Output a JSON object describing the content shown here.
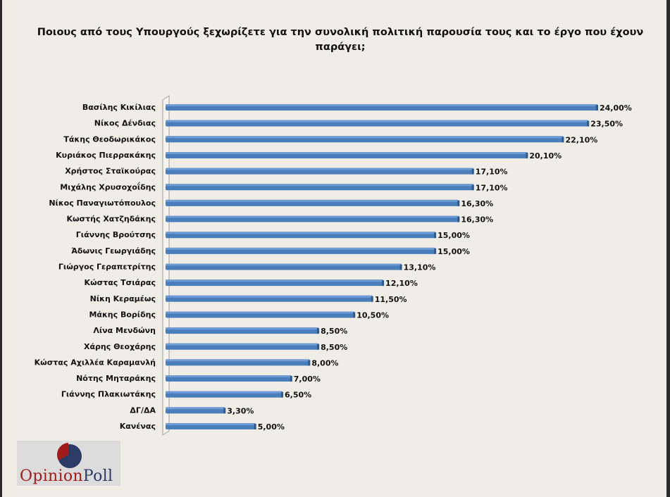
{
  "chart_data": {
    "type": "bar",
    "orientation": "horizontal",
    "title": "Ποιους από τους Υπουργούς  ξεχωρίζετε για την συνολική πολιτική παρουσία τους και το έργο που έχουν παράγει;",
    "categories": [
      "Βασίλης Κικίλιας",
      "Νίκος Δένδιας",
      "Τάκης Θεοδωρικάκος",
      "Κυριάκος Πιερρακάκης",
      "Χρήστος Σταϊκούρας",
      "Μιχάλης Χρυσοχοΐδης",
      "Νίκος Παναγιωτόπουλος",
      "Κωστής Χατζηδάκης",
      "Γιάννης Βρούτσης",
      "Άδωνις Γεωργιάδης",
      "Γιώργος Γεραπετρίτης",
      "Κώστας Τσιάρας",
      "Νίκη Κεραμέως",
      "Μάκης Βορίδης",
      "Λίνα Μενδώνη",
      "Χάρης Θεοχάρης",
      "Κώστας Αχιλλέα Καραμανλή",
      "Νότης Μηταράκης",
      "Γιάννης Πλακιωτάκης",
      "ΔΓ/ΔΑ",
      "Κανένας"
    ],
    "values": [
      24.0,
      23.5,
      22.1,
      20.1,
      17.1,
      17.1,
      16.3,
      16.3,
      15.0,
      15.0,
      13.1,
      12.1,
      11.5,
      10.5,
      8.5,
      8.5,
      8.0,
      7.0,
      6.5,
      3.3,
      5.0
    ],
    "labels": [
      "24,00%",
      "23,50%",
      "22,10%",
      "20,10%",
      "17,10%",
      "17,10%",
      "16,30%",
      "16,30%",
      "15,00%",
      "15,00%",
      "13,10%",
      "12,10%",
      "11,50%",
      "10,50%",
      "8,50%",
      "8,50%",
      "8,00%",
      "7,00%",
      "6,50%",
      "3,30%",
      "5,00%"
    ],
    "xlim": [
      0,
      24
    ],
    "grid": false,
    "bar_color": "#4f81bd"
  },
  "logo": {
    "text_part1": "Opinion",
    "text_part2": "Poll",
    "colors": {
      "red": "#a11b1b",
      "navy": "#2c3a66"
    }
  }
}
